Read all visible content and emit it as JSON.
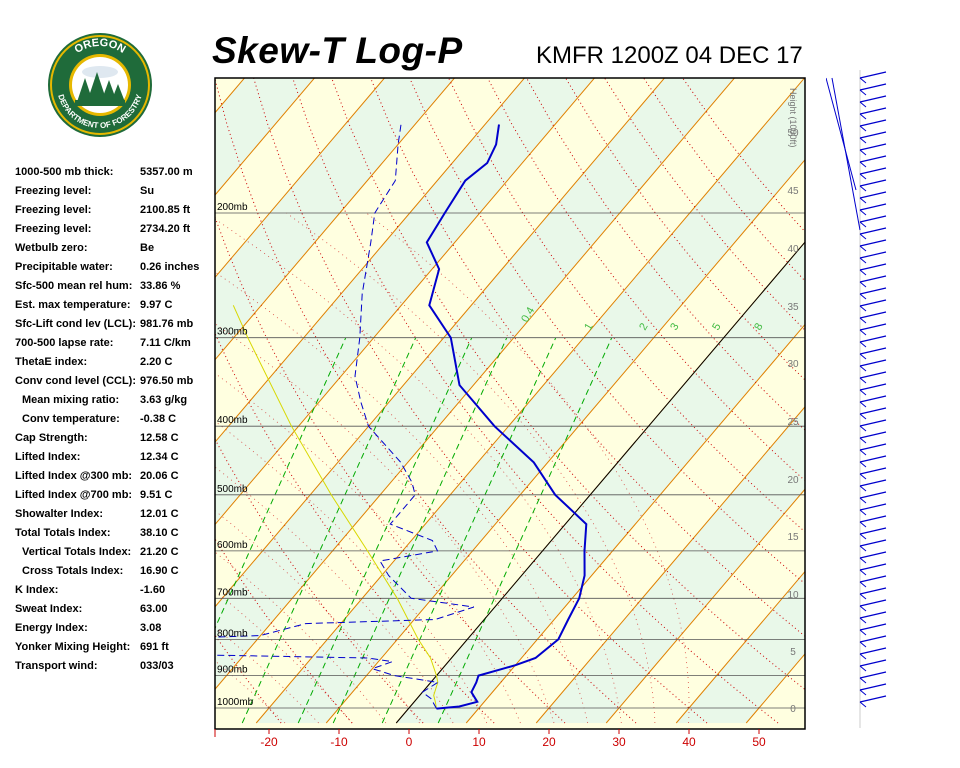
{
  "logo": {
    "text_top": "OREGON",
    "text_bottom": "DEPARTMENT OF FORESTRY",
    "colors": {
      "ring": "#1f6b3a",
      "gold": "#e6b800",
      "sky": "#ffffff"
    }
  },
  "header": {
    "title": "Skew-T Log-P",
    "subtitle": "KMFR 1200Z 04 DEC 17"
  },
  "indices": [
    {
      "label": "1000-500 mb thick:",
      "value": "5357.00 m"
    },
    {
      "label": "Freezing level:",
      "value": "Su"
    },
    {
      "label": "Freezing level:",
      "value": "2100.85 ft"
    },
    {
      "label": "Freezing level:",
      "value": "2734.20 ft"
    },
    {
      "label": "Wetbulb zero:",
      "value": "Be"
    },
    {
      "label": "Precipitable water:",
      "value": "0.26 inches"
    },
    {
      "label": "Sfc-500 mean rel hum:",
      "value": "33.86 %"
    },
    {
      "label": "Est. max temperature:",
      "value": "9.97 C"
    },
    {
      "label": "Sfc-Lift cond lev (LCL):",
      "value": "981.76 mb"
    },
    {
      "label": "700-500 lapse rate:",
      "value": "7.11 C/km"
    },
    {
      "label": "ThetaE index:",
      "value": "2.20 C"
    },
    {
      "label": "Conv cond level (CCL):",
      "value": "976.50 mb"
    },
    {
      "label": "Mean mixing ratio:",
      "value": "3.63 g/kg",
      "indent": true
    },
    {
      "label": "Conv temperature:",
      "value": "-0.38 C",
      "indent": true
    },
    {
      "label": "Cap Strength:",
      "value": "12.58 C"
    },
    {
      "label": "Lifted Index:",
      "value": "12.34 C"
    },
    {
      "label": "Lifted Index @300 mb:",
      "value": "20.06 C"
    },
    {
      "label": "Lifted Index @700 mb:",
      "value": "9.51 C"
    },
    {
      "label": "Showalter Index:",
      "value": "12.01 C"
    },
    {
      "label": "Total Totals Index:",
      "value": "38.10 C"
    },
    {
      "label": "Vertical Totals Index:",
      "value": "21.20 C",
      "indent": true
    },
    {
      "label": "Cross Totals Index:",
      "value": "16.90 C",
      "indent": true
    },
    {
      "label": "K Index:",
      "value": "-1.60"
    },
    {
      "label": "Sweat Index:",
      "value": "63.00"
    },
    {
      "label": "Energy Index:",
      "value": "3.08"
    },
    {
      "label": "Yonker Mixing Height:",
      "value": "691 ft"
    },
    {
      "label": "Transport wind:",
      "value": "033/03"
    }
  ],
  "chart_data": {
    "type": "line",
    "x_ticks": [
      -20,
      -10,
      0,
      10,
      20,
      30,
      40,
      50
    ],
    "pressure_levels": [
      {
        "p": 200,
        "label": "200mb"
      },
      {
        "p": 300,
        "label": "300mb"
      },
      {
        "p": 400,
        "label": "400mb"
      },
      {
        "p": 500,
        "label": "500mb"
      },
      {
        "p": 600,
        "label": "600mb"
      },
      {
        "p": 700,
        "label": "700mb"
      },
      {
        "p": 800,
        "label": "800mb"
      },
      {
        "p": 900,
        "label": "900mb"
      },
      {
        "p": 1000,
        "label": "1000mb"
      }
    ],
    "height_axis": {
      "label": "Height (1000ft)",
      "ticks": [
        "50",
        "45",
        "40",
        "35",
        "30",
        "25",
        "20",
        "15",
        "10",
        "5",
        "0"
      ]
    },
    "mixing_ratio_labels": [
      "0.4",
      "1",
      "2",
      "3",
      "5",
      "8"
    ],
    "temperature": [
      [
        1002,
        4
      ],
      [
        995,
        7
      ],
      [
        980,
        9
      ],
      [
        950,
        7
      ],
      [
        920,
        6.5
      ],
      [
        900,
        6
      ],
      [
        870,
        10
      ],
      [
        850,
        12
      ],
      [
        800,
        13
      ],
      [
        750,
        12
      ],
      [
        700,
        11
      ],
      [
        650,
        9
      ],
      [
        600,
        6
      ],
      [
        550,
        3
      ],
      [
        500,
        -5
      ],
      [
        450,
        -12
      ],
      [
        400,
        -22
      ],
      [
        350,
        -32
      ],
      [
        300,
        -39
      ],
      [
        270,
        -46
      ],
      [
        240,
        -49
      ],
      [
        220,
        -54
      ],
      [
        200,
        -55
      ],
      [
        180,
        -56
      ],
      [
        170,
        -55
      ],
      [
        160,
        -56
      ],
      [
        150,
        -58
      ]
    ],
    "dewpoint": [
      [
        1002,
        4
      ],
      [
        970,
        2
      ],
      [
        950,
        0
      ],
      [
        920,
        1
      ],
      [
        900,
        -6
      ],
      [
        880,
        -10
      ],
      [
        860,
        -8
      ],
      [
        850,
        -12
      ],
      [
        840,
        -40
      ],
      [
        820,
        -42
      ],
      [
        800,
        -45
      ],
      [
        790,
        -30
      ],
      [
        760,
        -25
      ],
      [
        750,
        -7
      ],
      [
        720,
        -3
      ],
      [
        700,
        -13
      ],
      [
        650,
        -19
      ],
      [
        620,
        -22
      ],
      [
        600,
        -15
      ],
      [
        580,
        -17
      ],
      [
        550,
        -25
      ],
      [
        500,
        -25
      ],
      [
        480,
        -27
      ],
      [
        450,
        -31
      ],
      [
        400,
        -40
      ],
      [
        370,
        -44
      ],
      [
        340,
        -48
      ],
      [
        300,
        -52
      ],
      [
        260,
        -57
      ],
      [
        220,
        -62
      ],
      [
        200,
        -65
      ],
      [
        180,
        -66
      ],
      [
        160,
        -70
      ],
      [
        150,
        -72
      ]
    ],
    "parcel": [
      [
        1002,
        4
      ],
      [
        980,
        3
      ],
      [
        960,
        2
      ],
      [
        940,
        1.5
      ],
      [
        920,
        1
      ],
      [
        900,
        0
      ],
      [
        850,
        -3
      ],
      [
        800,
        -7
      ],
      [
        700,
        -15
      ],
      [
        600,
        -25
      ],
      [
        500,
        -37
      ],
      [
        400,
        -51
      ],
      [
        300,
        -68
      ],
      [
        270,
        -74
      ]
    ],
    "colors": {
      "temperature": "#0000cc",
      "dewpoint": "#0000cc",
      "parcel": "#d8d800",
      "dry_adiabat": "#e08000",
      "moist_adiabat": "#cc0000",
      "mixing_ratio": "#00aa00",
      "band_a": "#e9f8e9",
      "band_b": "#ffffe0"
    }
  }
}
